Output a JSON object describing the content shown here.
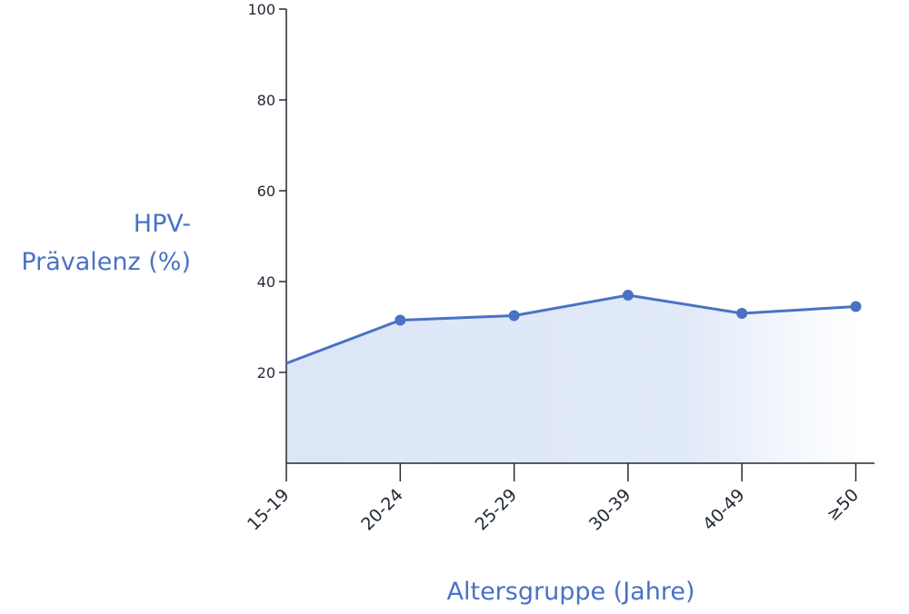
{
  "chart_data": {
    "type": "line",
    "categories": [
      "15-19",
      "20-24",
      "25-29",
      "30-39",
      "40-49",
      "≥50"
    ],
    "series": [
      {
        "values": [
          22,
          31.5,
          32.5,
          37,
          33,
          34.5
        ]
      }
    ],
    "xlabel": "Altersgruppe (Jahre)",
    "ylabel_lines": [
      "HPV-",
      "Prävalenz (%)"
    ],
    "ylim": [
      0,
      100
    ],
    "yticks": [
      20,
      40,
      60,
      80,
      100
    ],
    "grid": false,
    "area_fill": true,
    "colors": {
      "line": "#4a72c4",
      "fill": "#dce6f7",
      "axis": "#222a33"
    }
  }
}
